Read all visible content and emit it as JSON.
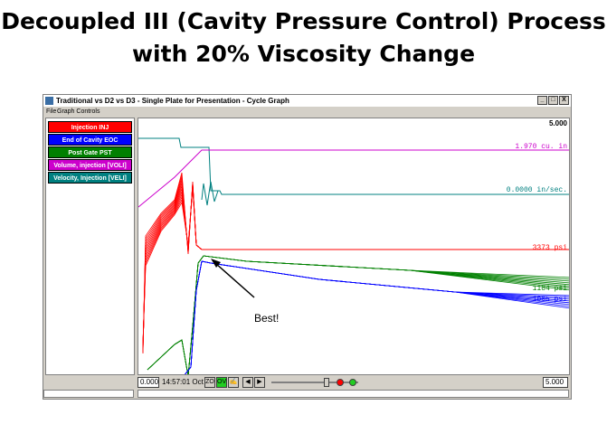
{
  "slide": {
    "title_line1": "Decoupled III (Cavity Pressure Control) Process",
    "title_line2": "with 20% Viscosity Change"
  },
  "window": {
    "title": "Traditional vs D2 vs D3 - Single Plate for Presentation - Cycle Graph",
    "controls": [
      "_",
      "□",
      "X"
    ],
    "menu": [
      "File",
      "Graph Controls"
    ]
  },
  "legend": [
    {
      "label": "Injection INJ",
      "bg": "#ff0000",
      "fg": "#ffffff"
    },
    {
      "label": "End of Cavity EOC",
      "bg": "#0000ff",
      "fg": "#ffffff"
    },
    {
      "label": "Post Gate PST",
      "bg": "#008000",
      "fg": "#ffffff"
    },
    {
      "label": "Volume, injection [VOLI]",
      "bg": "#cc00cc",
      "fg": "#ffffff"
    },
    {
      "label": "Velocity, Injection [VELI]",
      "bg": "#008080",
      "fg": "#ffffff"
    }
  ],
  "graph": {
    "ymax_label": "5.000",
    "series_labels": {
      "volume": "1.970 cu. in",
      "velocity": "0.0000 in/sec.",
      "injection": "3373 psi",
      "post_gate": "1184 psi",
      "cavity": "1005 psi"
    },
    "annotation": "Best!",
    "colors": {
      "injection": "#ff0000",
      "cavity": "#0000ff",
      "post_gate": "#008000",
      "volume": "#cc00cc",
      "velocity": "#008080"
    }
  },
  "toolbar": {
    "start_value": "0.000",
    "timestamp": "14:57:01 Oct 07",
    "zo_label": "ZO",
    "ov_label": "OV",
    "end_value": "5.000"
  }
}
